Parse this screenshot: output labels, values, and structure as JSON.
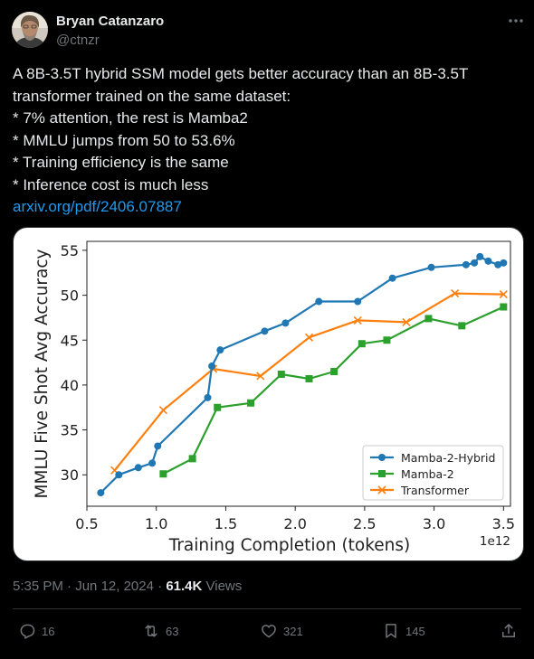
{
  "author": {
    "name": "Bryan Catanzaro",
    "handle": "@ctnzr"
  },
  "tweet": {
    "lines": [
      "A 8B-3.5T hybrid SSM model gets better accuracy than an 8B-3.5T",
      "transformer trained on the same dataset:",
      "* 7% attention, the rest is Mamba2",
      "* MMLU jumps from 50 to 53.6%",
      "* Training efficiency is the same",
      "* Inference cost is much less"
    ],
    "link": "arxiv.org/pdf/2406.07887"
  },
  "meta": {
    "time": "5:35 PM",
    "separator1": " · ",
    "date": "Jun 12, 2024",
    "separator2": " · ",
    "views_count": "61.4K",
    "views_label": " Views"
  },
  "actions": {
    "replies": "16",
    "reposts": "63",
    "likes": "321",
    "bookmarks": "145"
  },
  "colors": {
    "link": "#1d9bf0",
    "hybrid": "#1f77b4",
    "mamba": "#2ca02c",
    "transformer": "#ff7f0e"
  },
  "chart_data": {
    "type": "line",
    "xlabel": "Training Completion (tokens)",
    "ylabel": "MMLU Five Shot Avg Accuracy",
    "x_multiplier_label": "1e12",
    "xlim": [
      0.5,
      3.55
    ],
    "ylim": [
      26.5,
      56
    ],
    "xticks": [
      0.5,
      1.0,
      1.5,
      2.0,
      2.5,
      3.0,
      3.5
    ],
    "xtick_labels": [
      "0.5",
      "1.0",
      "1.5",
      "2.0",
      "2.5",
      "3.0",
      "3.5"
    ],
    "yticks": [
      30,
      35,
      40,
      45,
      50,
      55
    ],
    "ytick_labels": [
      "30",
      "35",
      "40",
      "45",
      "50",
      "55"
    ],
    "grid": false,
    "legend_position": "bottom-right",
    "series": [
      {
        "name": "Mamba-2-Hybrid",
        "marker": "circle",
        "color": "#1f77b4",
        "points": [
          [
            0.6,
            28.0
          ],
          [
            0.73,
            30.0
          ],
          [
            0.87,
            30.8
          ],
          [
            0.97,
            31.3
          ],
          [
            1.01,
            33.2
          ],
          [
            1.37,
            38.6
          ],
          [
            1.4,
            42.1
          ],
          [
            1.46,
            43.9
          ],
          [
            1.78,
            46.0
          ],
          [
            1.93,
            46.9
          ],
          [
            2.17,
            49.3
          ],
          [
            2.45,
            49.3
          ],
          [
            2.7,
            51.9
          ],
          [
            2.98,
            53.1
          ],
          [
            3.23,
            53.4
          ],
          [
            3.29,
            53.6
          ],
          [
            3.33,
            54.3
          ],
          [
            3.39,
            53.8
          ],
          [
            3.46,
            53.4
          ],
          [
            3.5,
            53.6
          ]
        ]
      },
      {
        "name": "Mamba-2",
        "marker": "square",
        "color": "#2ca02c",
        "points": [
          [
            1.05,
            30.1
          ],
          [
            1.26,
            31.8
          ],
          [
            1.44,
            37.5
          ],
          [
            1.68,
            38.0
          ],
          [
            1.9,
            41.2
          ],
          [
            2.1,
            40.7
          ],
          [
            2.28,
            41.5
          ],
          [
            2.48,
            44.6
          ],
          [
            2.66,
            45.0
          ],
          [
            2.96,
            47.4
          ],
          [
            3.2,
            46.6
          ],
          [
            3.5,
            48.7
          ]
        ]
      },
      {
        "name": "Transformer",
        "marker": "x",
        "color": "#ff7f0e",
        "points": [
          [
            0.7,
            30.5
          ],
          [
            1.05,
            37.2
          ],
          [
            1.41,
            41.8
          ],
          [
            1.75,
            41.0
          ],
          [
            2.1,
            45.3
          ],
          [
            2.45,
            47.2
          ],
          [
            2.8,
            47.0
          ],
          [
            3.15,
            50.2
          ],
          [
            3.5,
            50.1
          ]
        ]
      }
    ]
  }
}
